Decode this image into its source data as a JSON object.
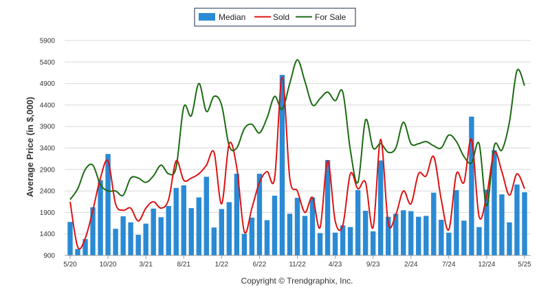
{
  "chart_data": {
    "type": "bar",
    "ylabel": "Average Price (in $,000)",
    "ylim": [
      900,
      5900
    ],
    "yticks": [
      900,
      1400,
      1900,
      2400,
      2900,
      3400,
      3900,
      4400,
      4900,
      5400,
      5900
    ],
    "xtick_labels": [
      "5/20",
      "10/20",
      "3/21",
      "8/21",
      "1/22",
      "6/22",
      "11/22",
      "4/23",
      "9/23",
      "2/24",
      "7/24",
      "12/24",
      "5/25"
    ],
    "grid": "horizontal",
    "legend_position": "top-center",
    "colors": {
      "median": "#2a8ad4",
      "sold": "#dd1111",
      "for_sale": "#1a6a10",
      "grid": "#d8d8d8"
    },
    "series": [
      {
        "name": "Median",
        "type": "bar",
        "values": [
          1680,
          1050,
          1280,
          2020,
          2650,
          3260,
          1520,
          1810,
          1670,
          1380,
          1640,
          1990,
          1790,
          2050,
          2470,
          2530,
          2000,
          2250,
          2730,
          1550,
          1980,
          2140,
          2800,
          1400,
          1780,
          2800,
          1720,
          2290,
          5100,
          1870,
          2240,
          1820,
          2250,
          1420,
          3120,
          1430,
          1600,
          1560,
          2420,
          1940,
          1460,
          3110,
          1800,
          1870,
          1950,
          1930,
          1800,
          1820,
          2360,
          1730,
          1430,
          2420,
          1710,
          4130,
          1560,
          2430,
          3350,
          2320,
          1670,
          2550,
          2370
        ]
      },
      {
        "name": "Sold",
        "type": "line",
        "values": [
          2150,
          1100,
          1300,
          1950,
          2700,
          3100,
          2100,
          1950,
          2000,
          1700,
          2000,
          2150,
          2000,
          2200,
          3100,
          2650,
          2700,
          2800,
          3000,
          3300,
          2100,
          3500,
          2950,
          1450,
          2000,
          2600,
          2850,
          2700,
          5050,
          2700,
          2400,
          1900,
          2250,
          1550,
          3100,
          1700,
          1600,
          2800,
          2450,
          2600,
          1550,
          3600,
          1650,
          1850,
          2400,
          2100,
          2800,
          2750,
          3200,
          2200,
          1500,
          2800,
          2600,
          3600,
          1800,
          2300,
          3300,
          2850,
          2300,
          2800,
          2450
        ]
      },
      {
        "name": "For Sale",
        "type": "line",
        "values": [
          2200,
          2450,
          2900,
          3000,
          2550,
          2400,
          2400,
          2300,
          2700,
          2700,
          2600,
          2750,
          3000,
          2800,
          2950,
          4350,
          4150,
          4900,
          4250,
          4600,
          4400,
          3450,
          3400,
          3850,
          3950,
          3750,
          4100,
          4600,
          4300,
          4900,
          5450,
          4950,
          4400,
          4550,
          4700,
          4500,
          4700,
          3350,
          2600,
          4050,
          3400,
          3500,
          3300,
          3400,
          4000,
          3500,
          3500,
          3550,
          3450,
          3400,
          3700,
          3550,
          3200,
          3050,
          3500,
          2050,
          3450,
          3350,
          4000,
          5200,
          4850
        ]
      }
    ],
    "credit": "Copyright © Trendgraphix, Inc."
  }
}
